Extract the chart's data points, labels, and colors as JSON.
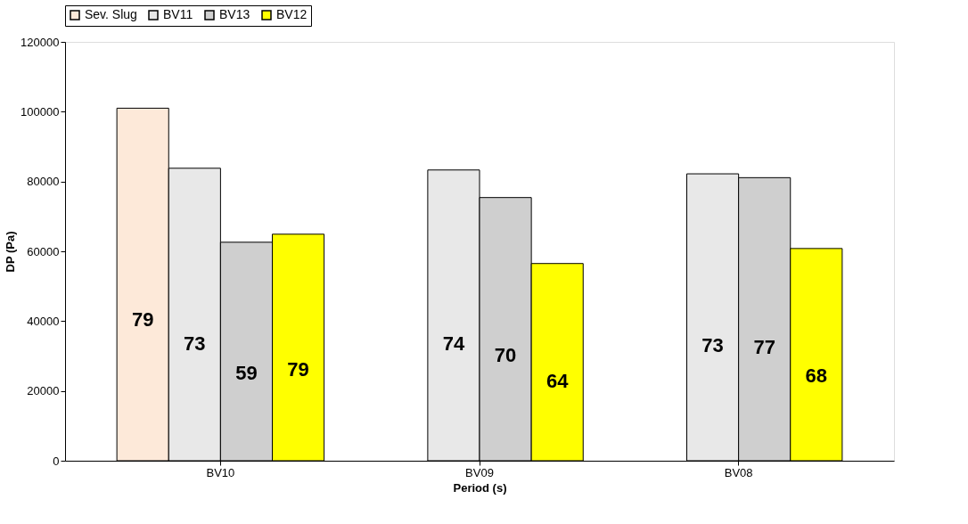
{
  "chart_data": {
    "type": "bar",
    "xlabel": "Period (s)",
    "ylabel": "DP (Pa)",
    "categories": [
      "BV10",
      "BV09",
      "BV08"
    ],
    "series": [
      {
        "name": "Sev. Slug",
        "color": "#fde9d9",
        "values": [
          101000,
          null,
          null
        ]
      },
      {
        "name": "BV11",
        "color": "#e8e8e8",
        "values": [
          83800,
          83300,
          82200
        ]
      },
      {
        "name": "BV13",
        "color": "#cfcfcf",
        "values": [
          62600,
          75400,
          81100
        ]
      },
      {
        "name": "BV12",
        "color": "#ffff00",
        "values": [
          64900,
          56500,
          60800
        ]
      }
    ],
    "annotations": [
      "79",
      "73",
      "59",
      "79",
      "74",
      "70",
      "64",
      "73",
      "77",
      "68"
    ],
    "ylim": [
      0,
      120000
    ],
    "yticks": [
      0,
      20000,
      40000,
      60000,
      80000,
      100000,
      120000
    ],
    "grid": false,
    "legend": "top"
  }
}
